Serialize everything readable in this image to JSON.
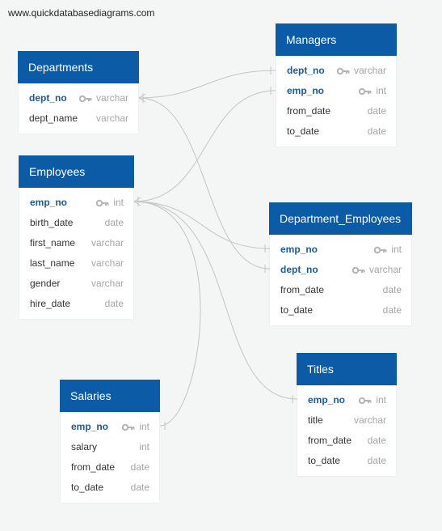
{
  "watermark": "www.quickdatabasediagrams.com",
  "colors": {
    "header": "#0b5ba6",
    "pk_text": "#1c5a96",
    "type_text": "#a5a5a5",
    "link": "#c4c4c4"
  },
  "tables": {
    "departments": {
      "title": "Departments",
      "fields": [
        {
          "name": "dept_no",
          "type": "varchar",
          "pk": true
        },
        {
          "name": "dept_name",
          "type": "varchar",
          "pk": false
        }
      ]
    },
    "employees": {
      "title": "Employees",
      "fields": [
        {
          "name": "emp_no",
          "type": "int",
          "pk": true
        },
        {
          "name": "birth_date",
          "type": "date",
          "pk": false
        },
        {
          "name": "first_name",
          "type": "varchar",
          "pk": false
        },
        {
          "name": "last_name",
          "type": "varchar",
          "pk": false
        },
        {
          "name": "gender",
          "type": "varchar",
          "pk": false
        },
        {
          "name": "hire_date",
          "type": "date",
          "pk": false
        }
      ]
    },
    "managers": {
      "title": "Managers",
      "fields": [
        {
          "name": "dept_no",
          "type": "varchar",
          "pk": true
        },
        {
          "name": "emp_no",
          "type": "int",
          "pk": true
        },
        {
          "name": "from_date",
          "type": "date",
          "pk": false
        },
        {
          "name": "to_date",
          "type": "date",
          "pk": false
        }
      ]
    },
    "dept_emp": {
      "title": "Department_Employees",
      "fields": [
        {
          "name": "emp_no",
          "type": "int",
          "pk": true
        },
        {
          "name": "dept_no",
          "type": "varchar",
          "pk": true
        },
        {
          "name": "from_date",
          "type": "date",
          "pk": false
        },
        {
          "name": "to_date",
          "type": "date",
          "pk": false
        }
      ]
    },
    "titles": {
      "title": "Titles",
      "fields": [
        {
          "name": "emp_no",
          "type": "int",
          "pk": true
        },
        {
          "name": "title",
          "type": "varchar",
          "pk": false
        },
        {
          "name": "from_date",
          "type": "date",
          "pk": false
        },
        {
          "name": "to_date",
          "type": "date",
          "pk": false
        }
      ]
    },
    "salaries": {
      "title": "Salaries",
      "fields": [
        {
          "name": "emp_no",
          "type": "int",
          "pk": true
        },
        {
          "name": "salary",
          "type": "int",
          "pk": false
        },
        {
          "name": "from_date",
          "type": "date",
          "pk": false
        },
        {
          "name": "to_date",
          "type": "date",
          "pk": false
        }
      ]
    }
  }
}
